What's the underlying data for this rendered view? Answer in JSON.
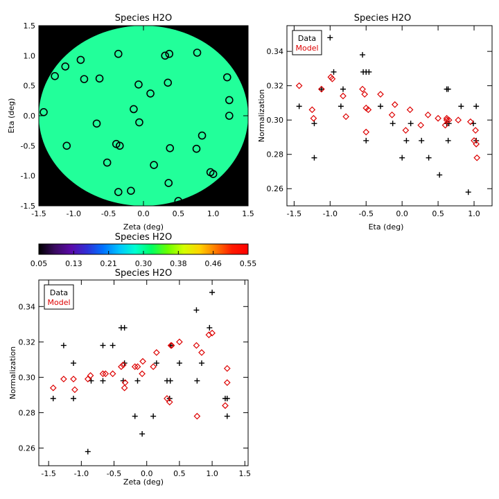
{
  "chart_data": [
    {
      "type": "heatmap",
      "title": "Species H2O",
      "xlabel": "Zeta (deg)",
      "ylabel": "Eta (deg)",
      "xlim": [
        -1.5,
        1.5
      ],
      "ylim": [
        -1.5,
        1.5
      ],
      "x_ticks": [
        "-1.5",
        "-1.0",
        "-0.5",
        "0.0",
        "0.5",
        "1.0",
        "1.5"
      ],
      "y_ticks": [
        "-1.5",
        "-1.0",
        "-0.5",
        "0.0",
        "0.5",
        "1.0",
        "1.5"
      ],
      "circle_radius": 1.5,
      "map_value_range": [
        0.29,
        0.33
      ],
      "colors": {
        "background": "#000000",
        "marker_stroke": "#000000"
      },
      "markers": [
        [
          -1.43,
          0.06
        ],
        [
          -1.27,
          0.66
        ],
        [
          -1.12,
          0.82
        ],
        [
          -0.9,
          0.93
        ],
        [
          -0.85,
          0.61
        ],
        [
          -0.63,
          0.62
        ],
        [
          -0.36,
          1.03
        ],
        [
          0.31,
          1.0
        ],
        [
          0.37,
          1.03
        ],
        [
          0.77,
          1.05
        ],
        [
          1.2,
          0.64
        ],
        [
          1.23,
          0.26
        ],
        [
          1.23,
          0.0
        ],
        [
          -0.07,
          0.52
        ],
        [
          0.1,
          0.37
        ],
        [
          0.35,
          0.55
        ],
        [
          -0.14,
          0.11
        ],
        [
          -0.06,
          -0.11
        ],
        [
          -0.67,
          -0.13
        ],
        [
          -1.1,
          -0.5
        ],
        [
          -0.52,
          -0.78
        ],
        [
          -0.39,
          -0.47
        ],
        [
          -0.34,
          -0.5
        ],
        [
          0.38,
          -0.54
        ],
        [
          0.76,
          -0.55
        ],
        [
          0.84,
          -0.33
        ],
        [
          0.15,
          -0.82
        ],
        [
          0.96,
          -0.94
        ],
        [
          1.0,
          -0.97
        ],
        [
          -0.18,
          -1.25
        ],
        [
          -0.36,
          -1.27
        ],
        [
          0.36,
          -1.12
        ],
        [
          0.5,
          -1.42
        ]
      ]
    },
    {
      "type": "scatter",
      "title": "Species H2O",
      "xlabel": "Eta (deg)",
      "ylabel": "Normalization",
      "xlim": [
        -1.6,
        1.25
      ],
      "ylim": [
        0.25,
        0.355
      ],
      "x_ticks": [
        "-1.5",
        "-1.0",
        "-0.5",
        "0.0",
        "0.5",
        "1.0"
      ],
      "y_ticks": [
        "0.26",
        "0.28",
        "0.30",
        "0.32",
        "0.34"
      ],
      "legend": {
        "placement": "top-left",
        "entries": [
          "Data",
          "Model"
        ]
      },
      "series": [
        {
          "name": "Data",
          "marker": "plus",
          "color": "#000000",
          "x": [
            -1.43,
            -1.22,
            -1.22,
            -1.12,
            -1.0,
            -0.95,
            -0.85,
            -0.82,
            -0.55,
            -0.54,
            -0.5,
            -0.46,
            -0.5,
            -0.3,
            -0.13,
            0.0,
            0.06,
            0.12,
            0.27,
            0.37,
            0.52,
            0.62,
            0.62,
            0.64,
            0.64,
            0.65,
            0.82,
            0.92,
            0.99,
            1.03,
            1.03
          ],
          "y": [
            0.308,
            0.298,
            0.278,
            0.318,
            0.348,
            0.328,
            0.308,
            0.318,
            0.338,
            0.328,
            0.328,
            0.328,
            0.288,
            0.308,
            0.298,
            0.278,
            0.288,
            0.298,
            0.288,
            0.278,
            0.268,
            0.298,
            0.318,
            0.318,
            0.288,
            0.298,
            0.308,
            0.258,
            0.298,
            0.308,
            0.288
          ]
        },
        {
          "name": "Model",
          "marker": "diamond",
          "color": "#dd0000",
          "x": [
            -1.43,
            -1.25,
            -1.23,
            -1.12,
            -0.99,
            -0.97,
            -0.82,
            -0.78,
            -0.55,
            -0.52,
            -0.5,
            -0.47,
            -0.5,
            -0.3,
            -0.14,
            -0.1,
            0.05,
            0.11,
            0.26,
            0.36,
            0.5,
            0.6,
            0.62,
            0.62,
            0.65,
            0.78,
            0.95,
            1.0,
            1.02,
            1.03,
            1.04
          ],
          "y": [
            0.32,
            0.306,
            0.301,
            0.318,
            0.325,
            0.324,
            0.314,
            0.302,
            0.318,
            0.315,
            0.307,
            0.306,
            0.293,
            0.315,
            0.303,
            0.309,
            0.294,
            0.306,
            0.297,
            0.303,
            0.301,
            0.297,
            0.301,
            0.3,
            0.3,
            0.3,
            0.299,
            0.288,
            0.294,
            0.286,
            0.278
          ]
        }
      ]
    },
    {
      "type": "colorbar",
      "title": "Species H2O",
      "range": [
        0.05,
        0.55
      ],
      "tick_labels": [
        "0.05",
        "0.13",
        "0.21",
        "0.30",
        "0.38",
        "0.46",
        "0.55"
      ],
      "colormap": [
        "#000000",
        "#3a0a60",
        "#5a0aa8",
        "#2f2fd6",
        "#0072ff",
        "#00c4ff",
        "#00ffd0",
        "#00ff62",
        "#6aff00",
        "#d4ff00",
        "#ffd200",
        "#ff7800",
        "#ff1a00",
        "#ff0000"
      ]
    },
    {
      "type": "scatter",
      "title": "Species H2O",
      "xlabel": "Zeta (deg)",
      "ylabel": "Normalization",
      "xlim": [
        -1.65,
        1.55
      ],
      "ylim": [
        0.25,
        0.355
      ],
      "x_ticks": [
        "-1.5",
        "-1.0",
        "-0.5",
        "0.0",
        "0.5",
        "1.0",
        "1.5"
      ],
      "y_ticks": [
        "0.26",
        "0.28",
        "0.30",
        "0.32",
        "0.34"
      ],
      "legend": {
        "placement": "top-left",
        "entries": [
          "Data",
          "Model"
        ]
      },
      "series": [
        {
          "name": "Data",
          "marker": "plus",
          "color": "#000000",
          "x": [
            -1.43,
            -1.27,
            -1.12,
            -1.12,
            -0.9,
            -0.85,
            -0.67,
            -0.67,
            -0.52,
            -0.39,
            -0.36,
            -0.34,
            -0.34,
            -0.18,
            -0.14,
            -0.07,
            0.1,
            0.15,
            0.31,
            0.35,
            0.36,
            0.37,
            0.5,
            0.76,
            0.77,
            0.84,
            0.96,
            1.0,
            1.2,
            1.23,
            1.23
          ],
          "y": [
            0.288,
            0.318,
            0.308,
            0.288,
            0.258,
            0.298,
            0.298,
            0.318,
            0.318,
            0.328,
            0.298,
            0.328,
            0.308,
            0.278,
            0.298,
            0.268,
            0.278,
            0.308,
            0.298,
            0.288,
            0.298,
            0.318,
            0.308,
            0.338,
            0.298,
            0.308,
            0.328,
            0.348,
            0.288,
            0.288,
            0.278
          ]
        },
        {
          "name": "Model",
          "marker": "diamond",
          "color": "#dd0000",
          "x": [
            -1.43,
            -1.27,
            -1.12,
            -1.1,
            -0.9,
            -0.86,
            -0.67,
            -0.63,
            -0.52,
            -0.39,
            -0.36,
            -0.34,
            -0.33,
            -0.18,
            -0.14,
            -0.07,
            -0.06,
            0.1,
            0.15,
            0.31,
            0.35,
            0.37,
            0.38,
            0.5,
            0.77,
            0.76,
            0.84,
            0.95,
            1.0,
            1.2,
            1.23,
            1.23
          ],
          "y": [
            0.294,
            0.299,
            0.299,
            0.293,
            0.299,
            0.301,
            0.302,
            0.302,
            0.302,
            0.306,
            0.307,
            0.294,
            0.297,
            0.306,
            0.306,
            0.302,
            0.309,
            0.306,
            0.314,
            0.288,
            0.286,
            0.318,
            0.318,
            0.32,
            0.278,
            0.318,
            0.314,
            0.324,
            0.325,
            0.284,
            0.297,
            0.305
          ]
        }
      ]
    }
  ]
}
